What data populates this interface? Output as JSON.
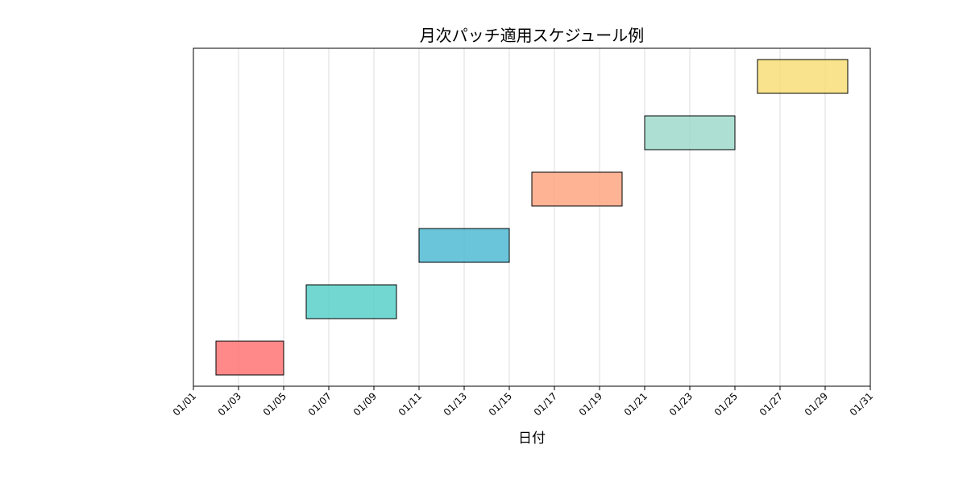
{
  "chart_data": {
    "type": "gantt",
    "title": "月次パッチ適用スケジュール例",
    "xlabel": "日付",
    "ylabel": "",
    "x_axis": {
      "type": "date",
      "range_days": [
        1,
        31
      ],
      "tick_days": [
        1,
        3,
        5,
        7,
        9,
        11,
        13,
        15,
        17,
        19,
        21,
        23,
        25,
        27,
        29,
        31
      ],
      "tick_labels": [
        "01/01",
        "01/03",
        "01/05",
        "01/07",
        "01/09",
        "01/11",
        "01/13",
        "01/15",
        "01/17",
        "01/19",
        "01/21",
        "01/23",
        "01/25",
        "01/27",
        "01/29",
        "01/31"
      ],
      "grid": true
    },
    "y_axis": {
      "ticks_visible": false,
      "row_count": 6
    },
    "tasks": [
      {
        "row": 0,
        "start_day": 2,
        "end_day": 5,
        "color": "#ff6b6b"
      },
      {
        "row": 1,
        "start_day": 6,
        "end_day": 10,
        "color": "#4ecdc4"
      },
      {
        "row": 2,
        "start_day": 11,
        "end_day": 15,
        "color": "#45b7d1"
      },
      {
        "row": 3,
        "start_day": 16,
        "end_day": 20,
        "color": "#ffa07a"
      },
      {
        "row": 4,
        "start_day": 21,
        "end_day": 25,
        "color": "#98d8c8"
      },
      {
        "row": 5,
        "start_day": 26,
        "end_day": 30,
        "color": "#f7dc6f"
      }
    ],
    "style": {
      "bar_opacity": 0.8,
      "bar_edge_color": "#000000",
      "grid_color": "#dddddd"
    }
  }
}
